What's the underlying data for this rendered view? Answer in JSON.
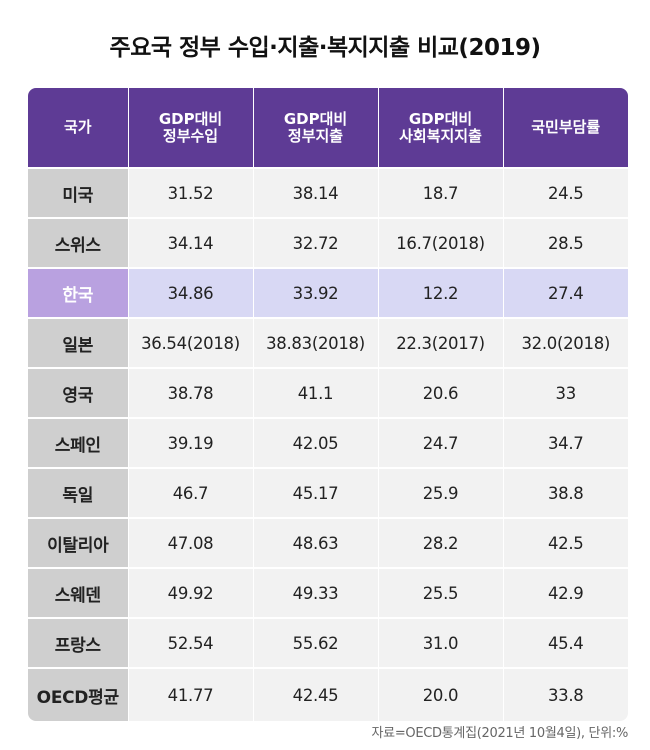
{
  "title": "주요국 정부 수입·지출·복지지출 비교(2019)",
  "table": {
    "headers": [
      "국가",
      "GDP대비\n정부수입",
      "GDP대비\n정부지출",
      "GDP대비\n사회복지지출",
      "국민부담률"
    ],
    "rows": [
      {
        "country": "미국",
        "values": [
          "31.52",
          "38.14",
          "18.7",
          "24.5"
        ]
      },
      {
        "country": "스위스",
        "values": [
          "34.14",
          "32.72",
          "16.7(2018)",
          "28.5"
        ]
      },
      {
        "country": "한국",
        "values": [
          "34.86",
          "33.92",
          "12.2",
          "27.4"
        ],
        "highlight": true
      },
      {
        "country": "일본",
        "values": [
          "36.54(2018)",
          "38.83(2018)",
          "22.3(2017)",
          "32.0(2018)"
        ]
      },
      {
        "country": "영국",
        "values": [
          "38.78",
          "41.1",
          "20.6",
          "33"
        ]
      },
      {
        "country": "스페인",
        "values": [
          "39.19",
          "42.05",
          "24.7",
          "34.7"
        ]
      },
      {
        "country": "독일",
        "values": [
          "46.7",
          "45.17",
          "25.9",
          "38.8"
        ]
      },
      {
        "country": "이탈리아",
        "values": [
          "47.08",
          "48.63",
          "28.2",
          "42.5"
        ]
      },
      {
        "country": "스웨덴",
        "values": [
          "49.92",
          "49.33",
          "25.5",
          "42.9"
        ]
      },
      {
        "country": "프랑스",
        "values": [
          "52.54",
          "55.62",
          "31.0",
          "45.4"
        ]
      },
      {
        "country": "OECD평균",
        "values": [
          "41.77",
          "42.45",
          "20.0",
          "33.8"
        ]
      }
    ]
  },
  "source": "자료=OECD통계집(2021년 10월4일), 단위:%",
  "colors": {
    "header_bg": "#5e3b95",
    "country_bg": "#cfcfcf",
    "cell_bg": "#f2f2f2",
    "highlight_country_bg": "#b9a1e0",
    "highlight_cell_bg": "#d8d8f4"
  }
}
